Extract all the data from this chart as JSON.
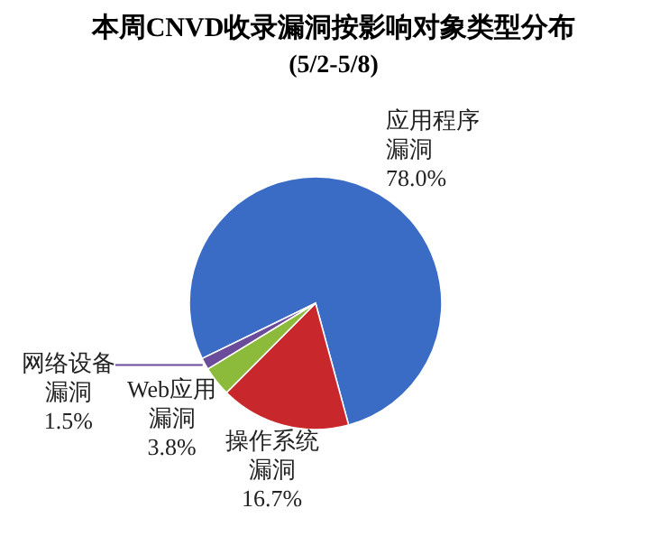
{
  "chart_data": {
    "type": "pie",
    "title": "本周CNVD收录漏洞按影响对象类型分布",
    "subtitle": "(5/2-5/8)",
    "categories": [
      "应用程序漏洞",
      "操作系统漏洞",
      "Web应用漏洞",
      "网络设备漏洞"
    ],
    "values": [
      78.0,
      16.7,
      3.8,
      1.5
    ],
    "colors": [
      "#3a6cc6",
      "#c8282c",
      "#8cbb3c",
      "#6b4c9a"
    ],
    "value_labels": [
      "78.0%",
      "16.7%",
      "3.8%",
      "1.5%"
    ],
    "legend": false
  }
}
